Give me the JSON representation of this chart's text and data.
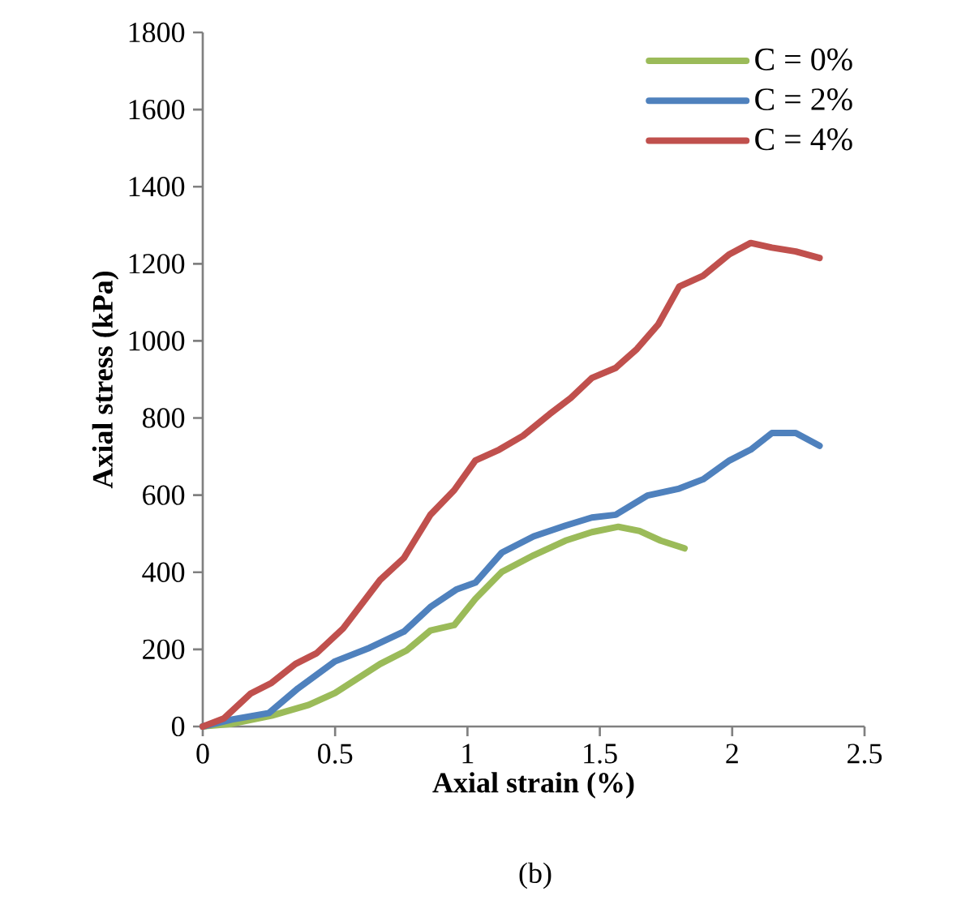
{
  "chart_data": {
    "type": "line",
    "xlabel": "Axial strain (%)",
    "ylabel": "Axial stress (kPa)",
    "xlim": [
      0,
      2.5
    ],
    "xticks": [
      0,
      0.5,
      1,
      1.5,
      2,
      2.5
    ],
    "ylim": [
      0,
      1800
    ],
    "yticks": [
      0,
      200,
      400,
      600,
      800,
      1000,
      1200,
      1400,
      1600,
      1800
    ],
    "grid": false,
    "legend": "top right",
    "marker": "none",
    "line_style": "solid",
    "annotations": [
      "(b)"
    ],
    "series": [
      {
        "name": "C = 0%",
        "color": "#9bbb59",
        "x": [
          0,
          0.11,
          0.26,
          0.4,
          0.5,
          0.67,
          0.77,
          0.86,
          0.95,
          1.03,
          1.13,
          1.25,
          1.37,
          1.47,
          1.57,
          1.65,
          1.73,
          1.82
        ],
        "values": [
          0,
          7,
          28,
          56,
          87,
          162,
          197,
          249,
          263,
          331,
          401,
          444,
          482,
          504,
          518,
          507,
          482,
          462
        ]
      },
      {
        "name": "C = 2%",
        "color": "#4f81bd",
        "x": [
          0,
          0.11,
          0.25,
          0.36,
          0.5,
          0.63,
          0.76,
          0.86,
          0.96,
          1.03,
          1.13,
          1.25,
          1.37,
          1.47,
          1.56,
          1.68,
          1.8,
          1.89,
          1.99,
          2.07,
          2.15,
          2.24,
          2.33
        ],
        "values": [
          0,
          18,
          35,
          99,
          169,
          204,
          246,
          310,
          356,
          373,
          451,
          493,
          521,
          542,
          549,
          599,
          617,
          641,
          690,
          718,
          761,
          761,
          728
        ]
      },
      {
        "name": "C = 4%",
        "color": "#c0504d",
        "x": [
          0,
          0.08,
          0.18,
          0.26,
          0.35,
          0.43,
          0.53,
          0.67,
          0.76,
          0.86,
          0.95,
          1.03,
          1.12,
          1.21,
          1.31,
          1.39,
          1.47,
          1.56,
          1.64,
          1.72,
          1.8,
          1.89,
          1.99,
          2.07,
          2.15,
          2.24,
          2.33
        ],
        "values": [
          0,
          21,
          85,
          113,
          162,
          190,
          254,
          380,
          437,
          549,
          613,
          690,
          718,
          754,
          810,
          852,
          904,
          930,
          979,
          1042,
          1141,
          1169,
          1225,
          1254,
          1242,
          1232,
          1215
        ]
      }
    ]
  }
}
